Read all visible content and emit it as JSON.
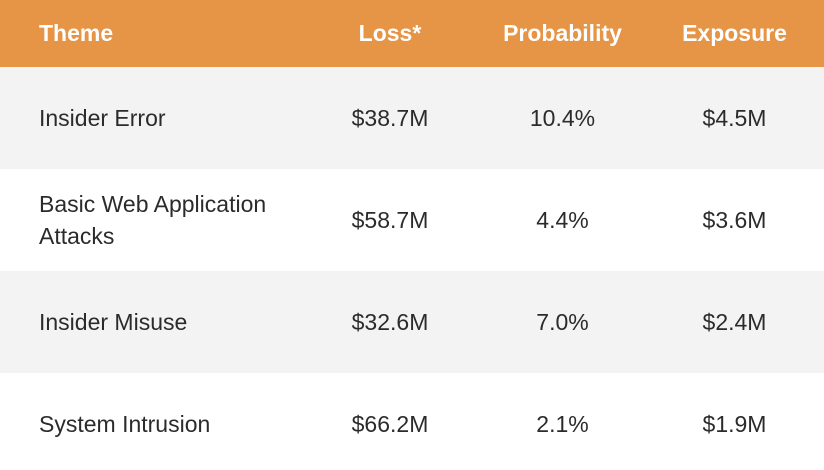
{
  "colors": {
    "header_bg": "#E69446",
    "row_shaded": "#F3F3F3",
    "row_plain": "#FFFFFF"
  },
  "chart_data": {
    "type": "table",
    "columns": [
      "Theme",
      "Loss*",
      "Probability",
      "Exposure"
    ],
    "rows": [
      [
        "Insider Error",
        "$38.7M",
        "10.4%",
        "$4.5M"
      ],
      [
        "Basic Web Application Attacks",
        "$58.7M",
        "4.4%",
        "$3.6M"
      ],
      [
        "Insider Misuse",
        "$32.6M",
        "7.0%",
        "$2.4M"
      ],
      [
        "System Intrusion",
        "$66.2M",
        "2.1%",
        "$1.9M"
      ]
    ]
  }
}
